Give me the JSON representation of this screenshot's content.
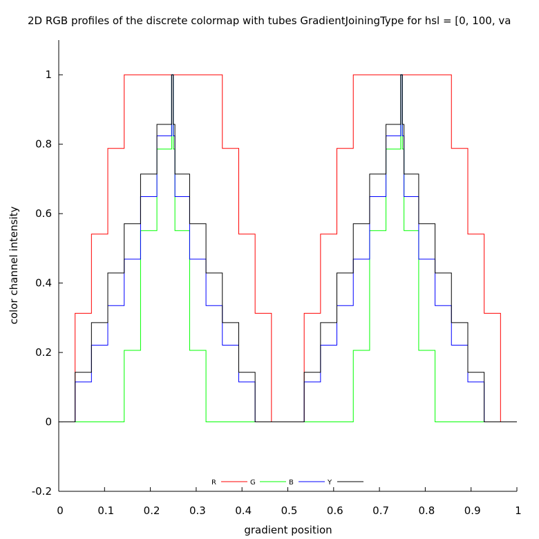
{
  "chart_data": {
    "type": "line",
    "title": "2D RGB profiles of the discrete colormap with tubes GradientJoiningType for hsl = [0, 100, va",
    "xlabel": "gradient position",
    "ylabel": "color channel intensity",
    "xlim": [
      0,
      1
    ],
    "ylim": [
      -0.2,
      1.1
    ],
    "xticks": [
      "0",
      "0.1",
      "0.2",
      "0.3",
      "0.4",
      "0.5",
      "0.6",
      "0.7",
      "0.8",
      "0.9",
      "1"
    ],
    "yticks": [
      "-0.2",
      "0",
      "0.2",
      "0.4",
      "0.6",
      "0.8",
      "1"
    ],
    "ytick_values": [
      -0.2,
      0,
      0.2,
      0.4,
      0.6,
      0.8,
      1
    ],
    "grid": false,
    "legend_position": "bottom-center",
    "x_breaks": [
      0,
      0.0357,
      0.0714,
      0.1071,
      0.1429,
      0.1786,
      0.2143,
      0.2464,
      0.25,
      0.2536,
      0.2857,
      0.3214,
      0.3571,
      0.3929,
      0.4286,
      0.4643,
      0.5357,
      0.5714,
      0.6071,
      0.6429,
      0.6786,
      0.7143,
      0.7464,
      0.75,
      0.7536,
      0.7857,
      0.8214,
      0.8571,
      0.8929,
      0.9286,
      0.9643,
      1.0
    ],
    "series": [
      {
        "name": "R",
        "color": "#ff0000",
        "values": [
          0,
          0.313,
          0.541,
          0.788,
          1,
          1,
          1,
          1,
          1,
          1,
          1,
          1,
          0.788,
          0.541,
          0.313,
          0,
          0.313,
          0.541,
          0.788,
          1,
          1,
          1,
          1,
          1,
          1,
          1,
          1,
          0.788,
          0.541,
          0.313,
          0
        ]
      },
      {
        "name": "G",
        "color": "#00ff00",
        "values": [
          0,
          0,
          0,
          0,
          0.206,
          0.551,
          0.786,
          1,
          0.786,
          0.551,
          0.206,
          0,
          0,
          0,
          0,
          0,
          0,
          0,
          0,
          0.206,
          0.551,
          0.786,
          1,
          0.786,
          0.551,
          0.206,
          0,
          0,
          0,
          0,
          0
        ]
      },
      {
        "name": "B",
        "color": "#0000ff",
        "values": [
          0,
          0.115,
          0.221,
          0.335,
          0.469,
          0.649,
          0.824,
          1,
          0.824,
          0.649,
          0.469,
          0.335,
          0.221,
          0.115,
          0,
          0,
          0.115,
          0.221,
          0.335,
          0.469,
          0.649,
          0.824,
          1,
          0.824,
          0.649,
          0.469,
          0.335,
          0.221,
          0.115,
          0,
          0
        ]
      },
      {
        "name": "Y",
        "color": "#000000",
        "values": [
          0,
          0.143,
          0.286,
          0.429,
          0.571,
          0.714,
          0.857,
          1,
          0.857,
          0.714,
          0.571,
          0.429,
          0.286,
          0.143,
          0,
          0,
          0.143,
          0.286,
          0.429,
          0.571,
          0.714,
          0.857,
          1,
          0.857,
          0.714,
          0.571,
          0.429,
          0.286,
          0.143,
          0,
          0
        ]
      }
    ]
  }
}
